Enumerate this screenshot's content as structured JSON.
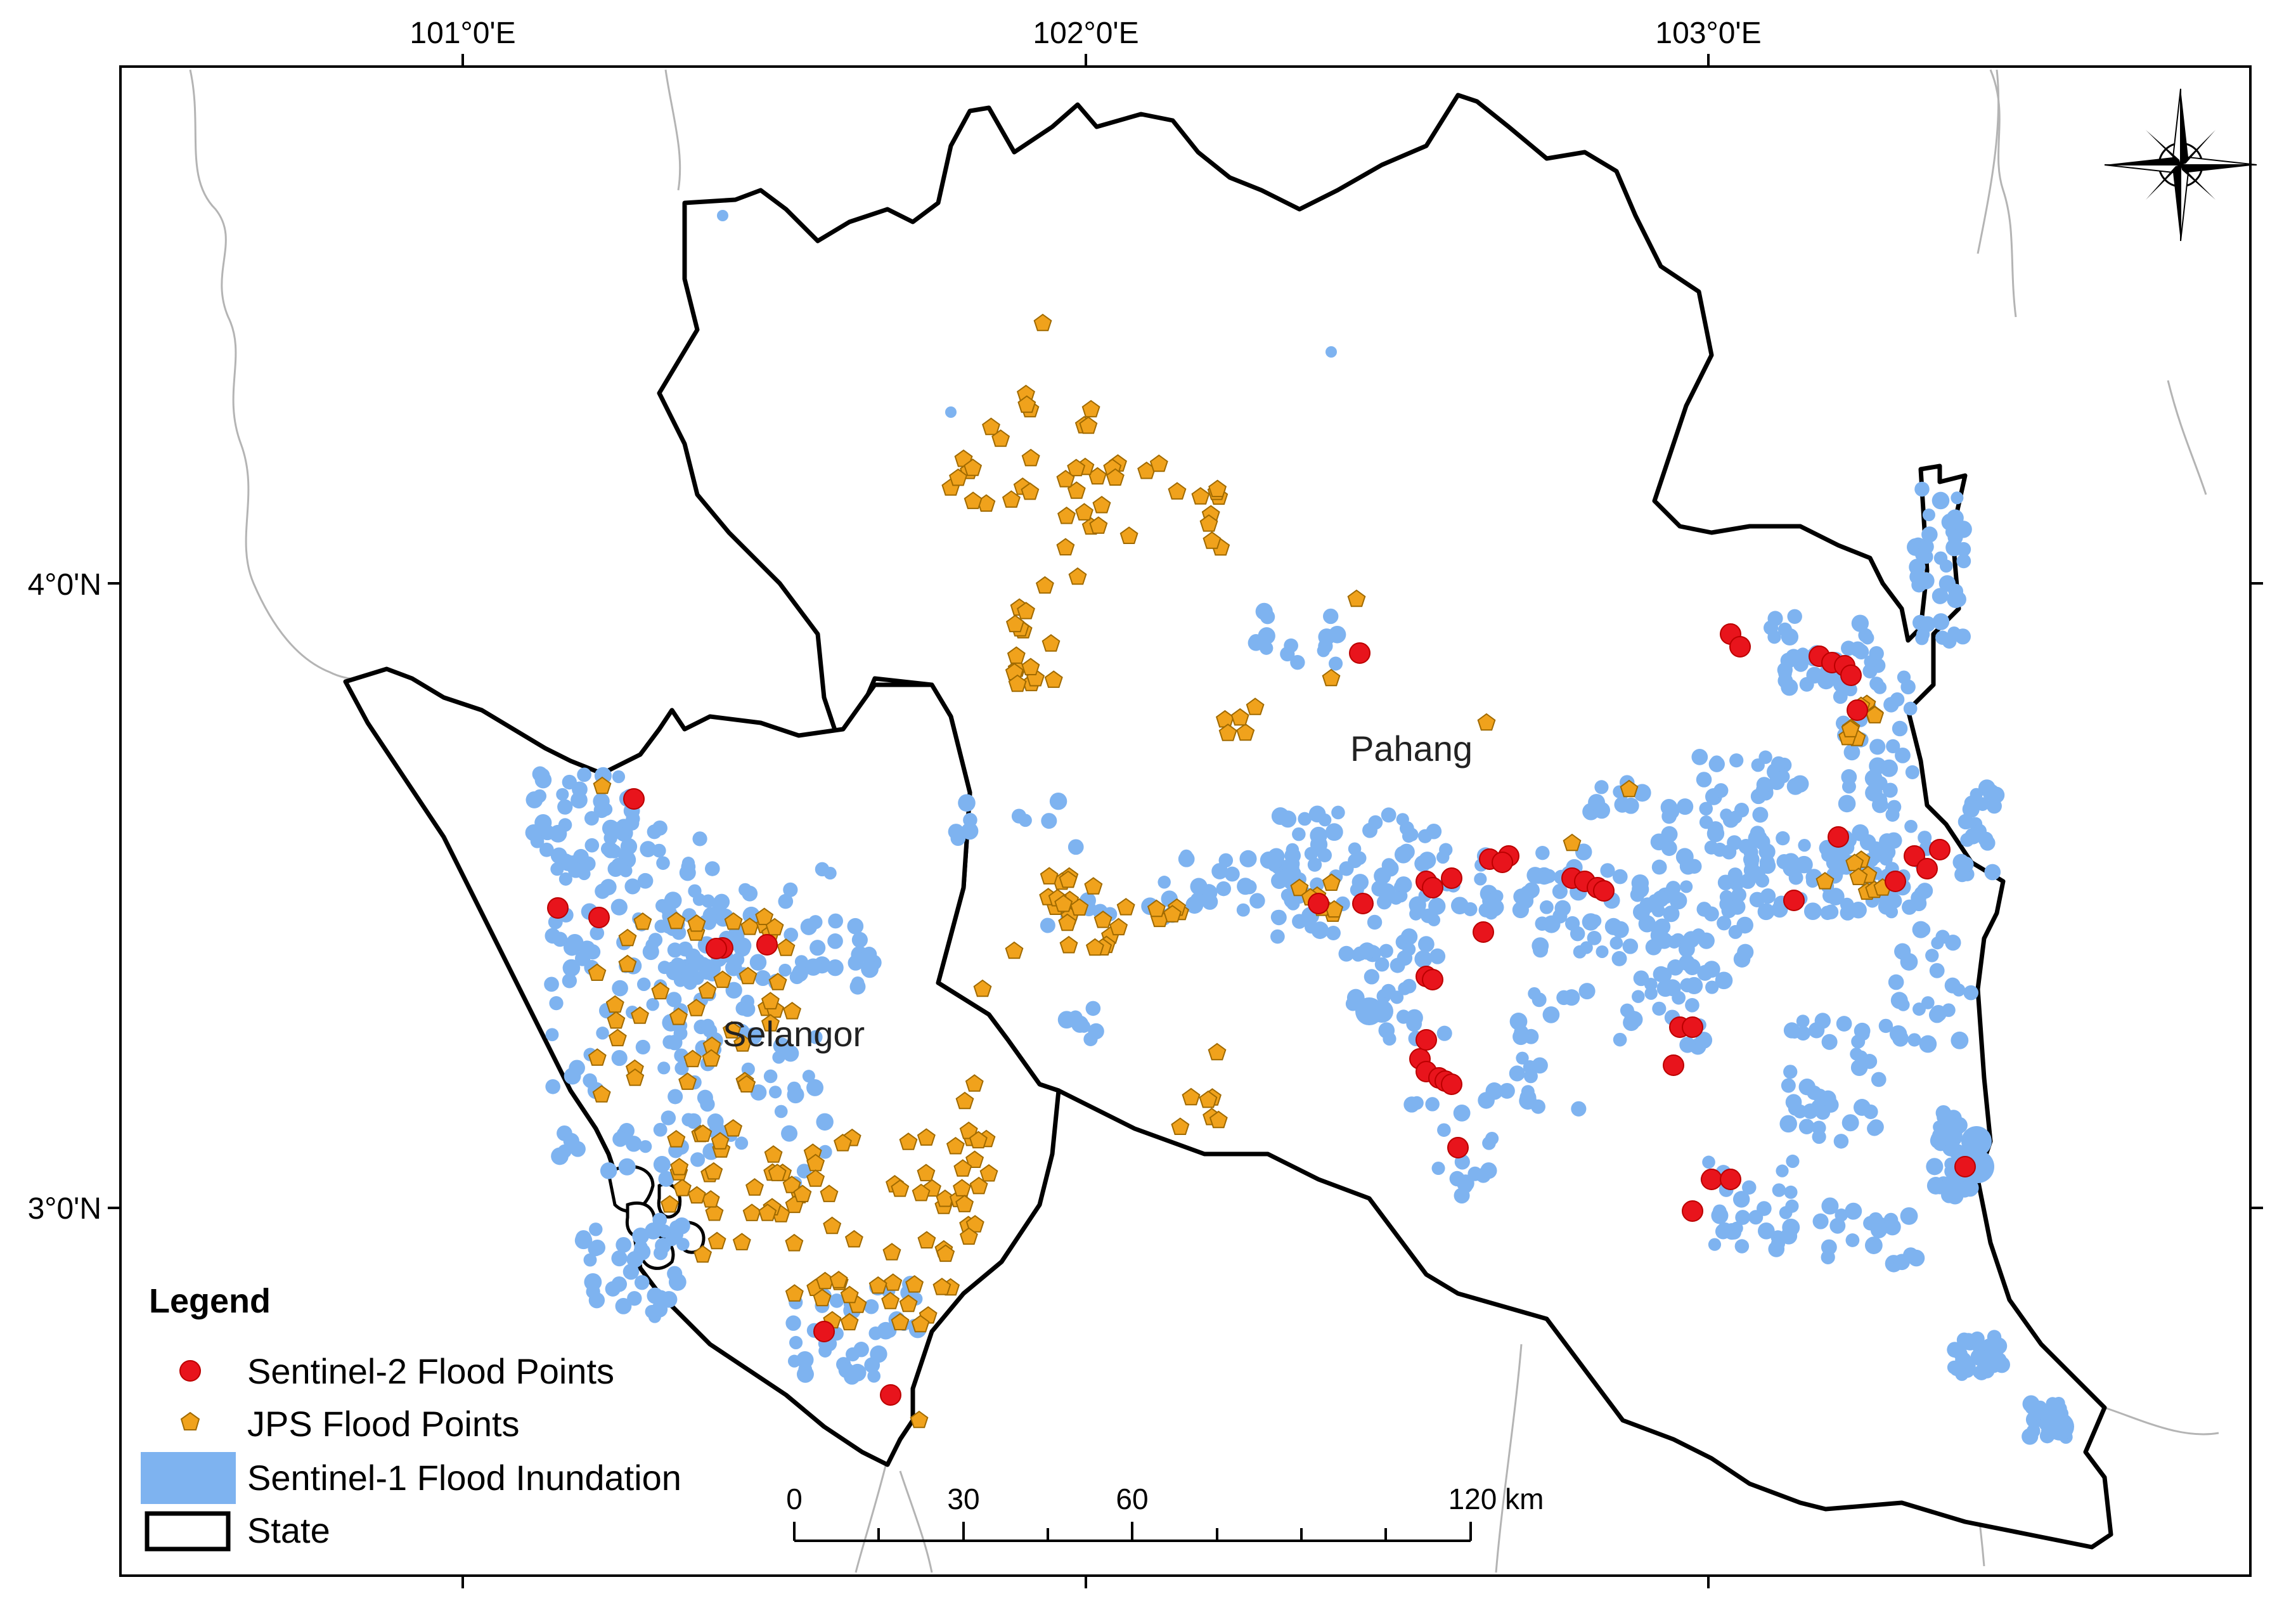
{
  "map": {
    "longitude_labels": [
      "101°0'E",
      "102°0'E",
      "103°0'E"
    ],
    "latitude_labels": [
      "4°0'N",
      "3°0'N"
    ],
    "state_labels": [
      "Pahang",
      "Selangor"
    ]
  },
  "legend": {
    "title": "Legend",
    "items": [
      {
        "label": "Sentinel-2 Flood Points",
        "symbol": "red-circle",
        "color": "#e8141c"
      },
      {
        "label": "JPS Flood Points",
        "symbol": "orange-pentagon",
        "color": "#f0a21c"
      },
      {
        "label": "Sentinel-1 Flood Inundation",
        "symbol": "blue-patch",
        "color": "#7eb3f0"
      },
      {
        "label": "State",
        "symbol": "black-outline-box",
        "color": "#000000"
      }
    ]
  },
  "scale_bar": {
    "ticks": [
      "0",
      "30",
      "60",
      "120 km"
    ]
  },
  "north_arrow": {
    "icon": "compass-rose-icon"
  },
  "colors": {
    "boundary": "#000000",
    "neighbor_boundary": "#b0b0b0",
    "sentinel1": "#7eb3f0",
    "jps": "#f0a21c",
    "sentinel2": "#e8141c"
  }
}
